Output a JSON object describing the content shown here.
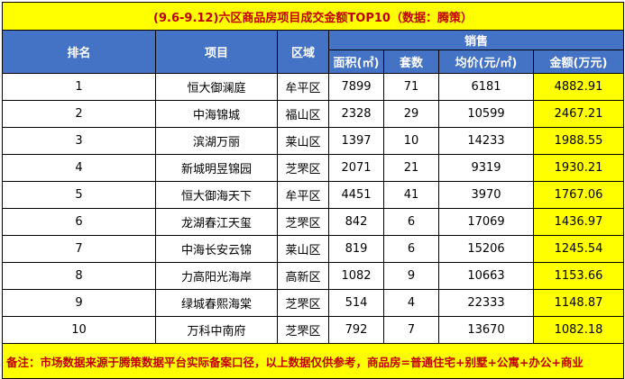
{
  "title": "(9.6-9.12)六区商品房项目成交金额TOP10（数据：腾策）",
  "headers": {
    "rank": "排名",
    "project": "项目",
    "district": "区域",
    "sales": "销售",
    "area": "面积(㎡)",
    "units": "套数",
    "avg_price": "均价(元/㎡)",
    "amount": "金额(万元)"
  },
  "rows": [
    {
      "rank": "1",
      "project": "恒大御澜庭",
      "district": "牟平区",
      "area": "7899",
      "units": "71",
      "avg_price": "6181",
      "amount": "4882.91"
    },
    {
      "rank": "2",
      "project": "中海锦城",
      "district": "福山区",
      "area": "2328",
      "units": "29",
      "avg_price": "10599",
      "amount": "2467.21"
    },
    {
      "rank": "3",
      "project": "滨湖万丽",
      "district": "莱山区",
      "area": "1397",
      "units": "10",
      "avg_price": "14233",
      "amount": "1988.55"
    },
    {
      "rank": "4",
      "project": "新城明昱锦园",
      "district": "芝罘区",
      "area": "2071",
      "units": "21",
      "avg_price": "9319",
      "amount": "1930.21"
    },
    {
      "rank": "5",
      "project": "恒大御海天下",
      "district": "牟平区",
      "area": "4451",
      "units": "41",
      "avg_price": "3970",
      "amount": "1767.06"
    },
    {
      "rank": "6",
      "project": "龙湖春江天玺",
      "district": "芝罘区",
      "area": "842",
      "units": "6",
      "avg_price": "17069",
      "amount": "1436.97"
    },
    {
      "rank": "7",
      "project": "中海长安云锦",
      "district": "莱山区",
      "area": "819",
      "units": "6",
      "avg_price": "15206",
      "amount": "1245.54"
    },
    {
      "rank": "8",
      "project": "力高阳光海岸",
      "district": "高新区",
      "area": "1082",
      "units": "9",
      "avg_price": "10663",
      "amount": "1153.66"
    },
    {
      "rank": "9",
      "project": "绿城春熙海棠",
      "district": "芝罘区",
      "area": "514",
      "units": "4",
      "avg_price": "22333",
      "amount": "1148.87"
    },
    {
      "rank": "10",
      "project": "万科中南府",
      "district": "芝罘区",
      "area": "792",
      "units": "7",
      "avg_price": "13670",
      "amount": "1082.18"
    }
  ],
  "note": "备注：市场数据来源于腾策数据平台实际备案口径，以上数据仅供参考，商品房=普通住宅+别墅+公寓+办公+商业",
  "colors": {
    "header_bg": "#4472c4",
    "highlight_bg": "#ffff00",
    "title_text": "#c00000"
  }
}
